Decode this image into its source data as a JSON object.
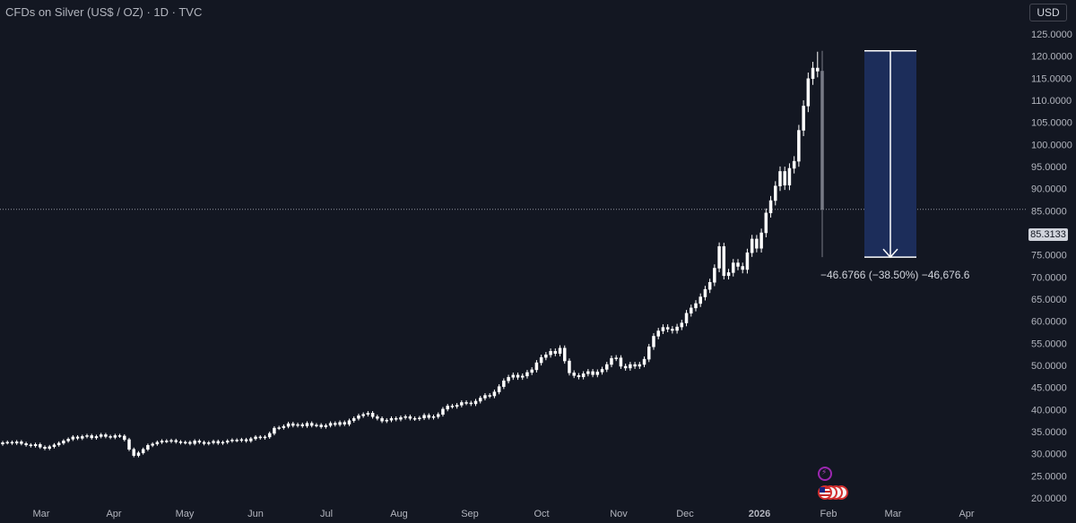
{
  "header": {
    "title": "CFDs on Silver (US$ / OZ) · 1D · TVC",
    "currency": "USD"
  },
  "price_axis": {
    "ticks": [
      "125.0000",
      "120.0000",
      "115.0000",
      "110.0000",
      "105.0000",
      "100.0000",
      "95.0000",
      "90.0000",
      "85.0000",
      "80.0000",
      "75.0000",
      "70.0000",
      "65.0000",
      "60.0000",
      "55.0000",
      "50.0000",
      "45.0000",
      "40.0000",
      "35.0000",
      "30.0000",
      "25.0000",
      "20.0000"
    ],
    "current_price": "85.3133"
  },
  "time_axis": {
    "ticks": [
      "Mar",
      "Apr",
      "May",
      "Jun",
      "Jul",
      "Aug",
      "Sep",
      "Oct",
      "Nov",
      "Dec",
      "2026",
      "Feb",
      "Mar",
      "Apr"
    ],
    "bold": "2026"
  },
  "measurement": {
    "label": "−46.6766 (−38.50%) −46,676.6",
    "from_price": 121.2,
    "to_price": 74.5,
    "fill_color": "#1c2d5a",
    "line_color": "#ffffff"
  },
  "colors": {
    "background": "#131722",
    "candle_up": "#ffffff",
    "candle_down": "#787b86",
    "axis_text": "#b2b5be"
  },
  "events": {
    "icons": [
      "lightning-event-icon",
      "us-flag-icon"
    ]
  },
  "chart_data": {
    "type": "candlestick",
    "title": "CFDs on Silver (US$ / OZ) · 1D · TVC",
    "xlabel": "",
    "ylabel": "",
    "ylim": [
      20,
      125
    ],
    "last_price": 85.3133,
    "x_ticks": [
      "Mar",
      "Apr",
      "May",
      "Jun",
      "Jul",
      "Aug",
      "Sep",
      "Oct",
      "Nov",
      "Dec",
      "2026",
      "Feb",
      "Mar",
      "Apr"
    ],
    "series": [
      {
        "close": [
          32.5,
          32.6,
          32.4,
          32.7,
          32.3,
          32.0,
          31.8,
          32.1,
          31.5,
          31.2,
          31.6,
          32.0,
          32.4,
          32.9,
          33.3,
          33.8,
          33.5,
          33.9,
          34.1,
          33.6,
          33.9,
          34.3,
          33.9,
          33.7,
          34.1,
          34.0,
          33.2,
          31.0,
          29.6,
          30.2,
          31.0,
          31.9,
          32.2,
          32.6,
          32.9,
          32.8,
          33.0,
          32.7,
          32.5,
          32.6,
          32.3,
          32.9,
          32.6,
          32.3,
          32.5,
          32.8,
          32.4,
          32.6,
          32.9,
          33.1,
          33.0,
          33.2,
          32.9,
          33.4,
          33.8,
          33.6,
          33.8,
          34.6,
          35.8,
          35.9,
          36.2,
          36.8,
          36.4,
          36.6,
          36.3,
          36.9,
          36.4,
          36.5,
          36.1,
          36.4,
          36.9,
          36.6,
          37.1,
          36.7,
          37.5,
          38.0,
          38.6,
          38.9,
          39.2,
          38.4,
          38.0,
          37.4,
          37.6,
          38.0,
          37.8,
          38.2,
          38.4,
          38.0,
          37.9,
          38.1,
          38.7,
          38.2,
          38.4,
          38.9,
          40.1,
          40.8,
          40.7,
          41.0,
          41.6,
          41.5,
          41.3,
          41.9,
          42.6,
          43.2,
          43.1,
          44.0,
          45.2,
          46.5,
          47.3,
          47.8,
          47.3,
          47.6,
          48.4,
          49.0,
          50.6,
          51.8,
          52.4,
          53.2,
          52.7,
          53.9,
          51.0,
          48.3,
          47.7,
          47.4,
          48.1,
          48.6,
          47.9,
          48.5,
          49.1,
          50.2,
          51.6,
          51.7,
          49.8,
          49.4,
          50.2,
          49.8,
          50.2,
          51.4,
          54.2,
          56.6,
          57.8,
          58.6,
          58.2,
          57.9,
          58.7,
          59.6,
          61.8,
          63.0,
          64.0,
          65.5,
          67.2,
          68.8,
          72.0,
          76.9,
          70.3,
          71.0,
          73.2,
          72.4,
          71.7,
          75.5,
          78.6,
          76.5,
          80.0,
          84.5,
          87.3,
          90.6,
          93.9,
          90.8,
          94.6,
          96.2,
          103.2,
          108.7,
          114.9,
          117.3,
          116.6,
          85.3
        ],
        "direction": "up except explicit down days: Apr-crash, Oct-top pullback, Nov dip, final bar down"
      }
    ]
  }
}
